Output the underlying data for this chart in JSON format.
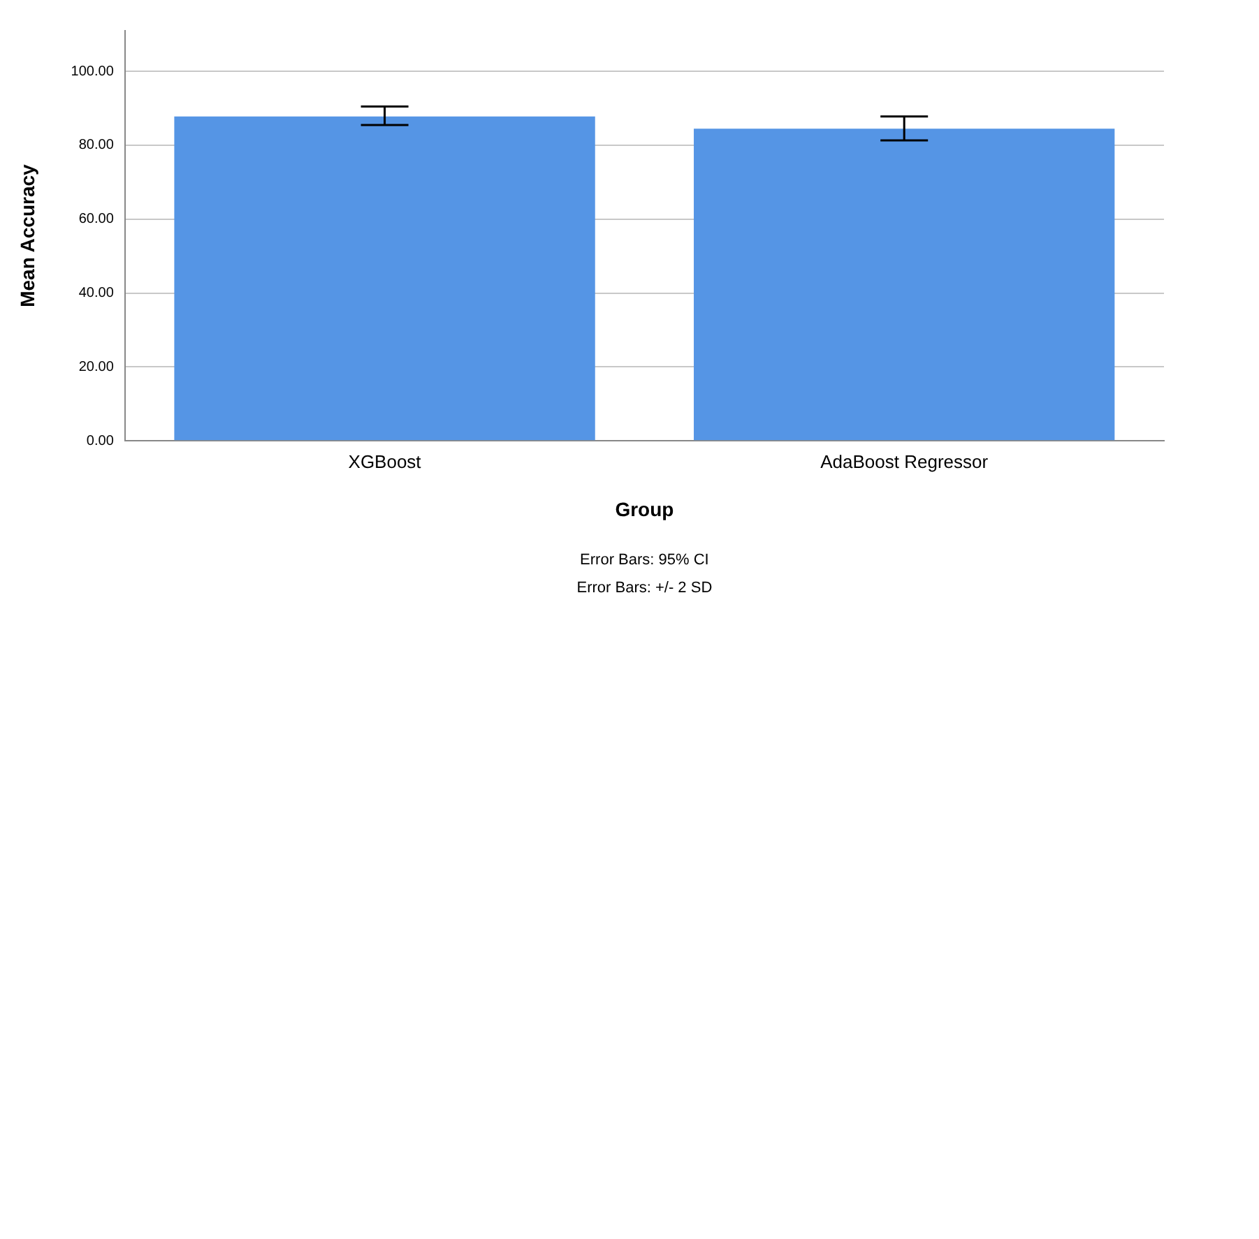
{
  "chart_data": {
    "type": "bar",
    "xlabel": "Group",
    "ylabel": "Mean Accuracy",
    "categories": [
      "XGBoost",
      "AdaBoost Regressor"
    ],
    "values": [
      87.8,
      84.5
    ],
    "color": "#5595e5",
    "errors": [
      [
        85.5,
        90.5
      ],
      [
        81.3,
        87.8
      ]
    ],
    "ylim": [
      0,
      111
    ],
    "yticks": [
      {
        "value": 0,
        "label": "0.00"
      },
      {
        "value": 20,
        "label": "20.00"
      },
      {
        "value": 40,
        "label": "40.00"
      },
      {
        "value": 60,
        "label": "60.00"
      },
      {
        "value": 80,
        "label": "80.00"
      },
      {
        "value": 100,
        "label": "100.00"
      }
    ],
    "grid": "y",
    "annotations": [
      "Error Bars: 95% CI",
      "Error Bars: +/- 2 SD"
    ]
  }
}
